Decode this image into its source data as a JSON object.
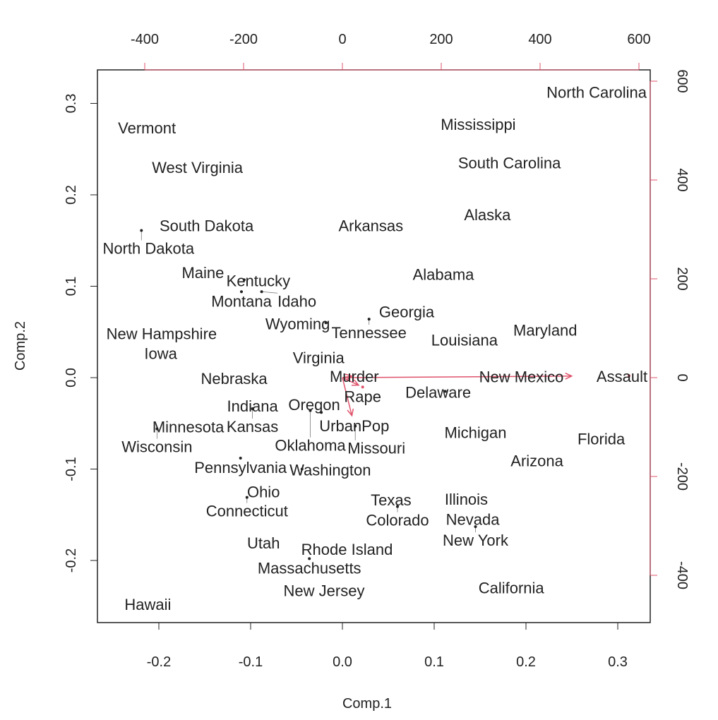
{
  "chart_data": {
    "type": "scatter",
    "subtype": "biplot",
    "xlabel": "Comp.1",
    "ylabel": "Comp.2",
    "xlim": [
      -0.267,
      0.335
    ],
    "ylim": [
      -0.268,
      0.337
    ],
    "x_ticks": [
      -0.2,
      -0.1,
      0.0,
      0.1,
      0.2,
      0.3
    ],
    "y_ticks": [
      -0.2,
      -0.1,
      0.0,
      0.1,
      0.2,
      0.3
    ],
    "top_ticks": [
      -400,
      -200,
      0,
      200,
      400,
      600
    ],
    "right_ticks": [
      -400,
      -200,
      0,
      200,
      400,
      600
    ],
    "grid": false,
    "point_color": "#222222",
    "loading_color": "#DF536B",
    "points": [
      {
        "label": "North Carolina",
        "x": 0.277,
        "y": 0.313
      },
      {
        "label": "Mississippi",
        "x": 0.148,
        "y": 0.278
      },
      {
        "label": "South Carolina",
        "x": 0.182,
        "y": 0.236
      },
      {
        "label": "Alaska",
        "x": 0.158,
        "y": 0.179
      },
      {
        "label": "Arkansas",
        "x": 0.031,
        "y": 0.167
      },
      {
        "label": "Vermont",
        "x": -0.213,
        "y": 0.274
      },
      {
        "label": "West Virginia",
        "x": -0.158,
        "y": 0.231
      },
      {
        "label": "South Dakota",
        "x": -0.148,
        "y": 0.167
      },
      {
        "label": "North Dakota",
        "x": -0.219,
        "y": 0.161
      },
      {
        "label": "Alabama",
        "x": 0.11,
        "y": 0.114
      },
      {
        "label": "Maine",
        "x": -0.152,
        "y": 0.116
      },
      {
        "label": "Kentucky",
        "x": -0.107,
        "y": 0.107
      },
      {
        "label": "Montana",
        "x": -0.11,
        "y": 0.094
      },
      {
        "label": "Idaho",
        "x": -0.088,
        "y": 0.094
      },
      {
        "label": "Georgia",
        "x": 0.07,
        "y": 0.073
      },
      {
        "label": "Tennessee",
        "x": 0.029,
        "y": 0.064
      },
      {
        "label": "Wyoming",
        "x": -0.018,
        "y": 0.06
      },
      {
        "label": "Maryland",
        "x": 0.221,
        "y": 0.053
      },
      {
        "label": "Louisiana",
        "x": 0.133,
        "y": 0.042
      },
      {
        "label": "New Hampshire",
        "x": -0.197,
        "y": 0.049
      },
      {
        "label": "Iowa",
        "x": -0.198,
        "y": 0.032
      },
      {
        "label": "Virginia",
        "x": -0.026,
        "y": 0.018
      },
      {
        "label": "Nebraska",
        "x": -0.118,
        "y": 0.0
      },
      {
        "label": "New Mexico",
        "x": 0.195,
        "y": 0.002
      },
      {
        "label": "Delaware",
        "x": 0.112,
        "y": -0.015
      },
      {
        "label": "Indiana",
        "x": -0.098,
        "y": -0.03
      },
      {
        "label": "Kansas",
        "x": -0.098,
        "y": -0.034
      },
      {
        "label": "Oklahoma",
        "x": -0.035,
        "y": -0.036
      },
      {
        "label": "Oregon",
        "x": -0.023,
        "y": -0.038
      },
      {
        "label": "Missouri",
        "x": 0.014,
        "y": -0.053
      },
      {
        "label": "Minnesota",
        "x": -0.168,
        "y": -0.053
      },
      {
        "label": "Wisconsin",
        "x": -0.202,
        "y": -0.056
      },
      {
        "label": "Michigan",
        "x": 0.145,
        "y": -0.059
      },
      {
        "label": "Florida",
        "x": 0.282,
        "y": -0.066
      },
      {
        "label": "Arizona",
        "x": 0.212,
        "y": -0.09
      },
      {
        "label": "Pennsylvania",
        "x": -0.111,
        "y": -0.088
      },
      {
        "label": "Washington",
        "x": -0.044,
        "y": -0.1
      },
      {
        "label": "Ohio",
        "x": -0.086,
        "y": -0.124
      },
      {
        "label": "Connecticut",
        "x": -0.104,
        "y": -0.131
      },
      {
        "label": "Texas",
        "x": 0.053,
        "y": -0.133
      },
      {
        "label": "Colorado",
        "x": 0.06,
        "y": -0.141
      },
      {
        "label": "Illinois",
        "x": 0.135,
        "y": -0.132
      },
      {
        "label": "Nevada",
        "x": 0.142,
        "y": -0.154
      },
      {
        "label": "New York",
        "x": 0.145,
        "y": -0.163
      },
      {
        "label": "Utah",
        "x": -0.086,
        "y": -0.18
      },
      {
        "label": "Rhode Island",
        "x": 0.005,
        "y": -0.187
      },
      {
        "label": "Massachusetts",
        "x": -0.036,
        "y": -0.198
      },
      {
        "label": "New Jersey",
        "x": -0.02,
        "y": -0.232
      },
      {
        "label": "California",
        "x": 0.184,
        "y": -0.229
      },
      {
        "label": "Hawaii",
        "x": -0.212,
        "y": -0.247
      }
    ],
    "loadings": [
      {
        "label": "Murder",
        "x": 24,
        "y": 4
      },
      {
        "label": "Assault",
        "x": 580,
        "y": 4
      },
      {
        "label": "UrbanPop",
        "x": 24,
        "y": -96
      },
      {
        "label": "Rape",
        "x": 41,
        "y": -19
      }
    ]
  }
}
